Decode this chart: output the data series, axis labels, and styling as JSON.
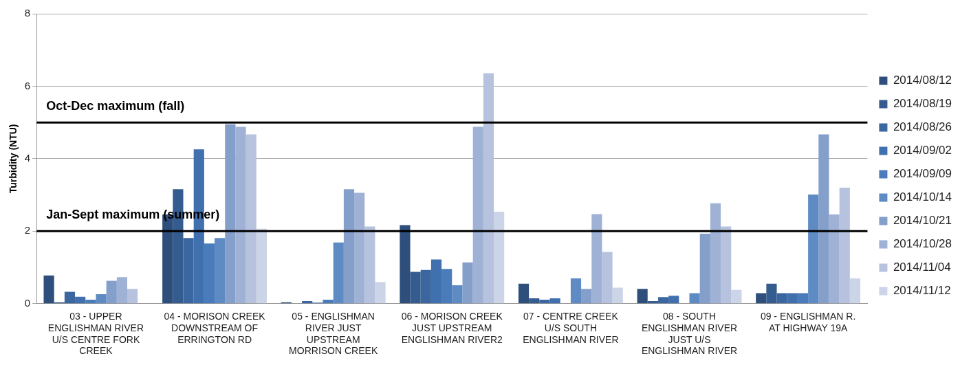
{
  "chart_data": {
    "type": "bar",
    "ylabel": "Turbidity (NTU)",
    "categories": [
      "03 - UPPER ENGLISHMAN RIVER U/S CENTRE FORK CREEK",
      "04 - MORISON CREEK DOWNSTREAM OF ERRINGTON RD",
      "05 - ENGLISHMAN RIVER JUST UPSTREAM MORRISON CREEK",
      "06 - MORISON CREEK JUST UPSTREAM ENGLISHMAN RIVER2",
      "07 - CENTRE CREEK U/S SOUTH ENGLISHMAN RIVER",
      "08 - SOUTH ENGLISHMAN RIVER JUST U/S ENGLISHMAN RIVER",
      "09 - ENGLISHMAN R. AT HIGHWAY 19A"
    ],
    "series": [
      {
        "name": "2014/08/12",
        "color": "#2e4f7c",
        "values": [
          0.78,
          2.46,
          0.04,
          2.17,
          0.55,
          0.41,
          0.29
        ]
      },
      {
        "name": "2014/08/19",
        "color": "#355c8e",
        "values": [
          0.04,
          3.16,
          0.01,
          0.88,
          0.15,
          0.07,
          0.55
        ]
      },
      {
        "name": "2014/08/26",
        "color": "#3b66a0",
        "values": [
          0.33,
          1.81,
          0.07,
          0.93,
          0.11,
          0.18,
          0.29
        ]
      },
      {
        "name": "2014/09/02",
        "color": "#4070ae",
        "values": [
          0.19,
          4.26,
          0.03,
          1.22,
          0.15,
          0.22,
          0.29
        ]
      },
      {
        "name": "2014/09/09",
        "color": "#4a7cbb",
        "values": [
          0.11,
          1.66,
          0.11,
          0.96,
          0,
          0,
          0.29
        ]
      },
      {
        "name": "2014/10/14",
        "color": "#5f8bc4",
        "values": [
          0.26,
          1.81,
          1.69,
          0.51,
          0.7,
          0.29,
          3.01
        ]
      },
      {
        "name": "2014/10/21",
        "color": "#859fcb",
        "values": [
          0.63,
          4.95,
          3.16,
          1.14,
          0.41,
          1.93,
          4.67
        ]
      },
      {
        "name": "2014/10/28",
        "color": "#9fb1d5",
        "values": [
          0.73,
          4.88,
          3.06,
          4.88,
          2.47,
          2.77,
          2.46
        ]
      },
      {
        "name": "2014/11/04",
        "color": "#b7c3de",
        "values": [
          0.41,
          4.67,
          2.13,
          6.36,
          1.43,
          2.13,
          3.2
        ]
      },
      {
        "name": "2014/11/12",
        "color": "#ccd5e7",
        "values": [
          null,
          2.07,
          0.6,
          2.54,
          0.44,
          0.38,
          0.7
        ]
      }
    ],
    "ylim": [
      0,
      8
    ],
    "yticks": [
      0,
      2,
      4,
      6,
      8
    ],
    "grid": "y",
    "legend": "right",
    "ref_lines": [
      {
        "axis": "y",
        "value": 5,
        "label": "Oct-Dec maximum (fall)",
        "color": "#000000"
      },
      {
        "axis": "y",
        "value": 2,
        "label": "Jan-Sept maximum (summer)",
        "color": "#000000"
      }
    ]
  }
}
